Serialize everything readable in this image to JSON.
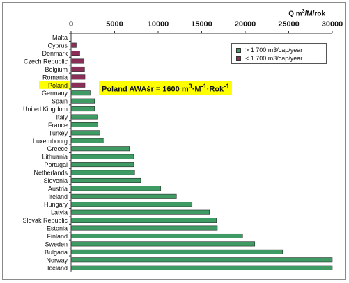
{
  "chart_data": {
    "type": "bar",
    "orientation": "horizontal",
    "title": "",
    "unit_label": "Q m³/M/rok",
    "xlim": [
      0,
      30000
    ],
    "x_ticks": [
      0,
      5000,
      10000,
      15000,
      20000,
      25000,
      30000
    ],
    "x_axis_position": "top",
    "grid": false,
    "legend_placement": "top-right",
    "categories": [
      "Malta",
      "Cyprus",
      "Denmark",
      "Czech Republic",
      "Belgium",
      "Romania",
      "Poland",
      "Germany",
      "Spain",
      "United Kingdom",
      "Italy",
      "France",
      "Turkey",
      "Luxembourg",
      "Greece",
      "Lithuania",
      "Portugal",
      "Netherlands",
      "Slovenia",
      "Austria",
      "Ireland",
      "Hungary",
      "Latvia",
      "Slovak Republic",
      "Estonia",
      "Finland",
      "Sweden",
      "Bulgaria",
      "Norway",
      "Iceland"
    ],
    "values": [
      0,
      600,
      1000,
      1500,
      1550,
      1600,
      1600,
      2200,
      2700,
      2700,
      3000,
      3100,
      3300,
      3700,
      6700,
      7200,
      7200,
      7300,
      8000,
      10300,
      12100,
      13900,
      15900,
      16700,
      16800,
      19700,
      21100,
      24300,
      30000,
      30000
    ],
    "series": [
      {
        "name": "> 1 700 m3/cap/year",
        "color": "#3d9b63"
      },
      {
        "name": "< 1 700 m3/cap/year",
        "color": "#8b2e58"
      }
    ],
    "threshold": 1700,
    "highlight": {
      "category": "Poland",
      "label_bg": "#ffff00",
      "annotation": {
        "main": "Poland AWAśr = 1600 m",
        "sup1": "3",
        "mid1": "·M",
        "sup2": "-1",
        "mid2": "·Rok",
        "sup3": "-1"
      }
    }
  }
}
